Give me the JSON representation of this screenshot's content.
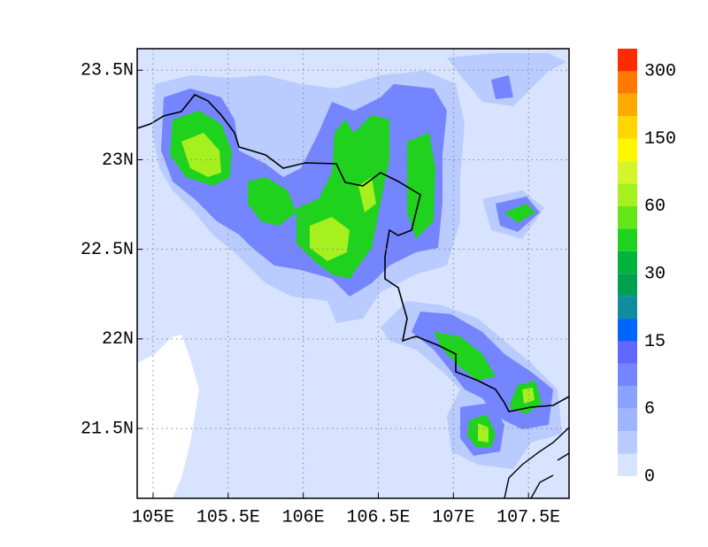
{
  "map": {
    "xlim": [
      104.894,
      107.77
    ],
    "ylim": [
      21.11,
      23.62
    ],
    "xticks": [
      {
        "value": 105,
        "label": "105E"
      },
      {
        "value": 105.5,
        "label": "105.5E"
      },
      {
        "value": 106,
        "label": "106E"
      },
      {
        "value": 106.5,
        "label": "106.5E"
      },
      {
        "value": 107,
        "label": "107E"
      },
      {
        "value": 107.5,
        "label": "107.5E"
      }
    ],
    "yticks": [
      {
        "value": 21.5,
        "label": "21.5N"
      },
      {
        "value": 22,
        "label": "22N"
      },
      {
        "value": 22.5,
        "label": "22.5N"
      },
      {
        "value": 23,
        "label": "23N"
      },
      {
        "value": 23.5,
        "label": "23.5N"
      }
    ],
    "grid": true,
    "colorbar": {
      "labels": [
        0,
        6,
        15,
        30,
        60,
        150,
        300
      ],
      "colors": [
        "#d7e3ff",
        "#b9cbff",
        "#9fb6ff",
        "#8aa2ff",
        "#7585ff",
        "#6268ff",
        "#0064ff",
        "#0f8ca0",
        "#00a050",
        "#00b43c",
        "#1ed21e",
        "#64e619",
        "#a5f01e",
        "#d4f52b",
        "#fff700",
        "#ffd700",
        "#ffaa00",
        "#ff7800",
        "#ff2a00"
      ]
    }
  }
}
